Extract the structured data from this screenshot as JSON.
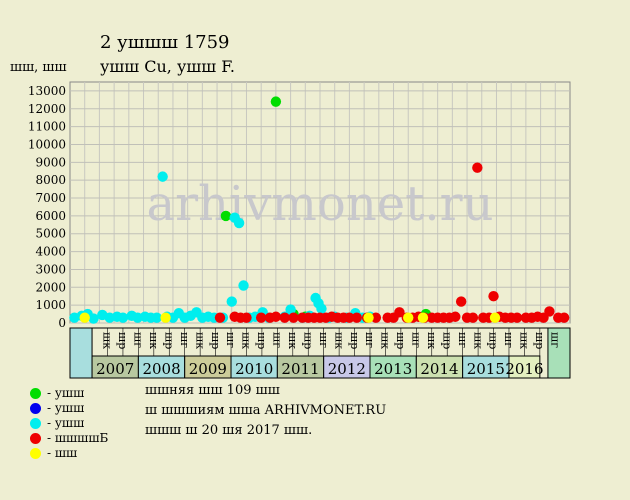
{
  "title": "2 ушшш 1759",
  "subtitle": "ушш Cu, ушш F.",
  "y_unit": "шш, шш",
  "watermark": "arhivmonet.ru",
  "legend": [
    {
      "label": "- ушш",
      "color": "#00dd00"
    },
    {
      "label": "- ушш",
      "color": "#0000ee"
    },
    {
      "label": "- ушш",
      "color": "#00eeee"
    },
    {
      "label": "- шшшшБ",
      "color": "#ee0000"
    },
    {
      "label": "- шш",
      "color": "#ffff00"
    }
  ],
  "notes": [
    "шшняя шш 109 шш",
    "ш шшшиям шша ARHIVMONET.RU",
    "шшш ш 20 шя 2017 шш."
  ],
  "chart_data": {
    "type": "scatter",
    "title": "2 ушшш 1759",
    "ylabel": "шш, шш",
    "ylim": [
      0,
      13500
    ],
    "yticks": [
      0,
      1000,
      2000,
      3000,
      4000,
      5000,
      6000,
      7000,
      8000,
      9000,
      10000,
      11000,
      12000,
      13000
    ],
    "grid": true,
    "legend_position": "bottom-left",
    "quarter_labels": [
      "шк",
      "шр",
      "шг",
      "шк",
      "шр",
      "шг",
      "шк",
      "шр",
      "шг",
      "шк",
      "шр",
      "шг",
      "шк",
      "шр",
      "шг",
      "шк",
      "шр",
      "шг",
      "шк",
      "шр",
      "шг",
      "шк",
      "шр",
      "шг",
      "шк",
      "шр",
      "шг",
      "шк",
      "шр",
      "шг"
    ],
    "years": [
      {
        "label": "2007",
        "start": 1,
        "span": 3,
        "color": "#b8c8a0"
      },
      {
        "label": "2008",
        "start": 4,
        "span": 3,
        "color": "#a8dede"
      },
      {
        "label": "2009",
        "start": 7,
        "span": 3,
        "color": "#cccc99"
      },
      {
        "label": "2010",
        "start": 10,
        "span": 3,
        "color": "#a8dede"
      },
      {
        "label": "2011",
        "start": 13,
        "span": 3,
        "color": "#b8c8a0"
      },
      {
        "label": "2012",
        "start": 16,
        "span": 3,
        "color": "#c8c8e8"
      },
      {
        "label": "2013",
        "start": 19,
        "span": 3,
        "color": "#a8e0b8"
      },
      {
        "label": "2014",
        "start": 22,
        "span": 3,
        "color": "#cce0b0"
      },
      {
        "label": "2015",
        "start": 25,
        "span": 3,
        "color": "#a8dede"
      },
      {
        "label": "2016",
        "start": 28,
        "span": 2,
        "color": "#e4f0c0"
      }
    ],
    "series": [
      {
        "color": "#00dd00",
        "points": [
          [
            10.6,
            6000
          ],
          [
            14.0,
            12400
          ],
          [
            15.2,
            500
          ],
          [
            16.0,
            350
          ],
          [
            24.2,
            500
          ]
        ]
      },
      {
        "color": "#00eeee",
        "points": [
          [
            0.3,
            300
          ],
          [
            0.8,
            400
          ],
          [
            1.2,
            500
          ],
          [
            1.6,
            250
          ],
          [
            2.2,
            450
          ],
          [
            2.7,
            300
          ],
          [
            3.2,
            350
          ],
          [
            3.6,
            300
          ],
          [
            4.2,
            400
          ],
          [
            4.6,
            300
          ],
          [
            5.1,
            350
          ],
          [
            5.5,
            300
          ],
          [
            5.9,
            300
          ],
          [
            6.3,
            8200
          ],
          [
            6.6,
            350
          ],
          [
            7.0,
            300
          ],
          [
            7.4,
            550
          ],
          [
            7.8,
            300
          ],
          [
            8.2,
            400
          ],
          [
            8.6,
            600
          ],
          [
            9.0,
            300
          ],
          [
            9.4,
            350
          ],
          [
            9.8,
            300
          ],
          [
            10.4,
            300
          ],
          [
            11.0,
            1200
          ],
          [
            11.2,
            5900
          ],
          [
            11.5,
            5600
          ],
          [
            11.8,
            2100
          ],
          [
            12.2,
            300
          ],
          [
            12.6,
            350
          ],
          [
            13.1,
            600
          ],
          [
            13.5,
            300
          ],
          [
            14.6,
            350
          ],
          [
            15.0,
            750
          ],
          [
            15.8,
            300
          ],
          [
            16.3,
            400
          ],
          [
            16.7,
            1400
          ],
          [
            16.9,
            1100
          ],
          [
            17.1,
            800
          ],
          [
            17.6,
            300
          ],
          [
            18.0,
            350
          ],
          [
            18.8,
            300
          ],
          [
            19.4,
            550
          ],
          [
            19.9,
            300
          ],
          [
            20.4,
            350
          ]
        ]
      },
      {
        "color": "#ee0000",
        "points": [
          [
            10.2,
            300
          ],
          [
            11.2,
            350
          ],
          [
            11.6,
            300
          ],
          [
            12.0,
            300
          ],
          [
            13.0,
            300
          ],
          [
            13.6,
            300
          ],
          [
            14.0,
            350
          ],
          [
            14.6,
            300
          ],
          [
            15.2,
            300
          ],
          [
            15.8,
            300
          ],
          [
            16.2,
            300
          ],
          [
            16.6,
            300
          ],
          [
            17.0,
            300
          ],
          [
            17.4,
            300
          ],
          [
            17.8,
            350
          ],
          [
            18.2,
            300
          ],
          [
            18.6,
            300
          ],
          [
            19.0,
            300
          ],
          [
            19.5,
            300
          ],
          [
            20.2,
            300
          ],
          [
            20.8,
            300
          ],
          [
            21.6,
            300
          ],
          [
            22.0,
            300
          ],
          [
            22.4,
            600
          ],
          [
            22.9,
            300
          ],
          [
            23.3,
            300
          ],
          [
            23.7,
            350
          ],
          [
            24.1,
            300
          ],
          [
            24.6,
            300
          ],
          [
            25.0,
            300
          ],
          [
            25.4,
            300
          ],
          [
            25.8,
            300
          ],
          [
            26.2,
            350
          ],
          [
            26.6,
            1200
          ],
          [
            27.0,
            300
          ],
          [
            27.4,
            300
          ],
          [
            27.7,
            8700
          ],
          [
            28.1,
            300
          ],
          [
            28.5,
            300
          ],
          [
            28.8,
            1500
          ],
          [
            29.2,
            350
          ],
          [
            29.6,
            300
          ],
          [
            30.0,
            300
          ],
          [
            30.4,
            300
          ],
          [
            31.0,
            300
          ],
          [
            31.4,
            300
          ],
          [
            31.8,
            350
          ],
          [
            32.2,
            300
          ],
          [
            32.6,
            650
          ],
          [
            33.2,
            300
          ],
          [
            33.6,
            300
          ]
        ]
      },
      {
        "color": "#ffff00",
        "points": [
          [
            1.0,
            300
          ],
          [
            6.5,
            300
          ],
          [
            20.3,
            300
          ],
          [
            23.0,
            300
          ],
          [
            24.0,
            300
          ],
          [
            28.9,
            300
          ]
        ]
      }
    ]
  }
}
